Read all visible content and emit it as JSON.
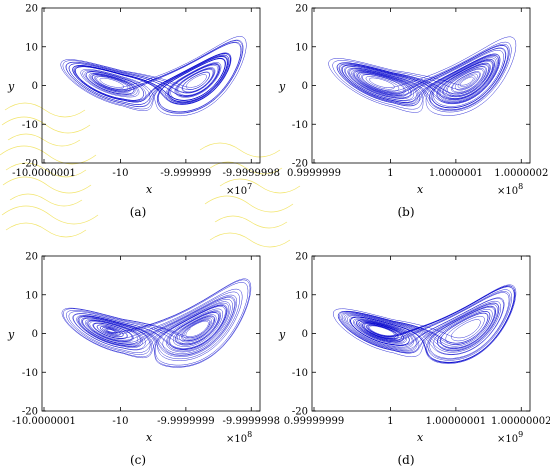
{
  "chart_data": [
    {
      "panel": "a",
      "type": "line",
      "caption": "(a)",
      "xlabel": "x",
      "ylabel": "y",
      "xticks": [
        "-10.0000001",
        "-10",
        "-9.999999",
        "-9.9999998"
      ],
      "xmultiplier": "×10",
      "xexponent": "7",
      "yticks": [
        "20",
        "10",
        "0",
        "-10",
        "-20"
      ],
      "ylim": [
        -20,
        20
      ],
      "line_color": "#0000cc",
      "background_decoration": "yellow-swirl"
    },
    {
      "panel": "b",
      "type": "line",
      "caption": "(b)",
      "xlabel": "x",
      "ylabel": "y",
      "xticks": [
        "0.9999999",
        "1",
        "1.0000001",
        "1.0000002"
      ],
      "xmultiplier": "×10",
      "xexponent": "8",
      "yticks": [
        "20",
        "10",
        "0",
        "-10",
        "-20"
      ],
      "ylim": [
        -20,
        20
      ],
      "line_color": "#0000cc"
    },
    {
      "panel": "c",
      "type": "line",
      "caption": "(c)",
      "xlabel": "x",
      "ylabel": "y",
      "xticks": [
        "-10.0000001",
        "-10",
        "-9.9999999",
        "-9.9999998"
      ],
      "xmultiplier": "×10",
      "xexponent": "8",
      "yticks": [
        "20",
        "10",
        "0",
        "-10",
        "-20"
      ],
      "ylim": [
        -20,
        20
      ],
      "line_color": "#0000cc"
    },
    {
      "panel": "d",
      "type": "line",
      "caption": "(d)",
      "xlabel": "x",
      "ylabel": "y",
      "xticks": [
        "0.99999999",
        "1",
        "1.00000001",
        "1.00000002"
      ],
      "xmultiplier": "×10",
      "xexponent": "9",
      "yticks": [
        "20",
        "10",
        "0",
        "-10",
        "-20"
      ],
      "ylim": [
        -20,
        20
      ],
      "line_color": "#0000cc"
    }
  ]
}
